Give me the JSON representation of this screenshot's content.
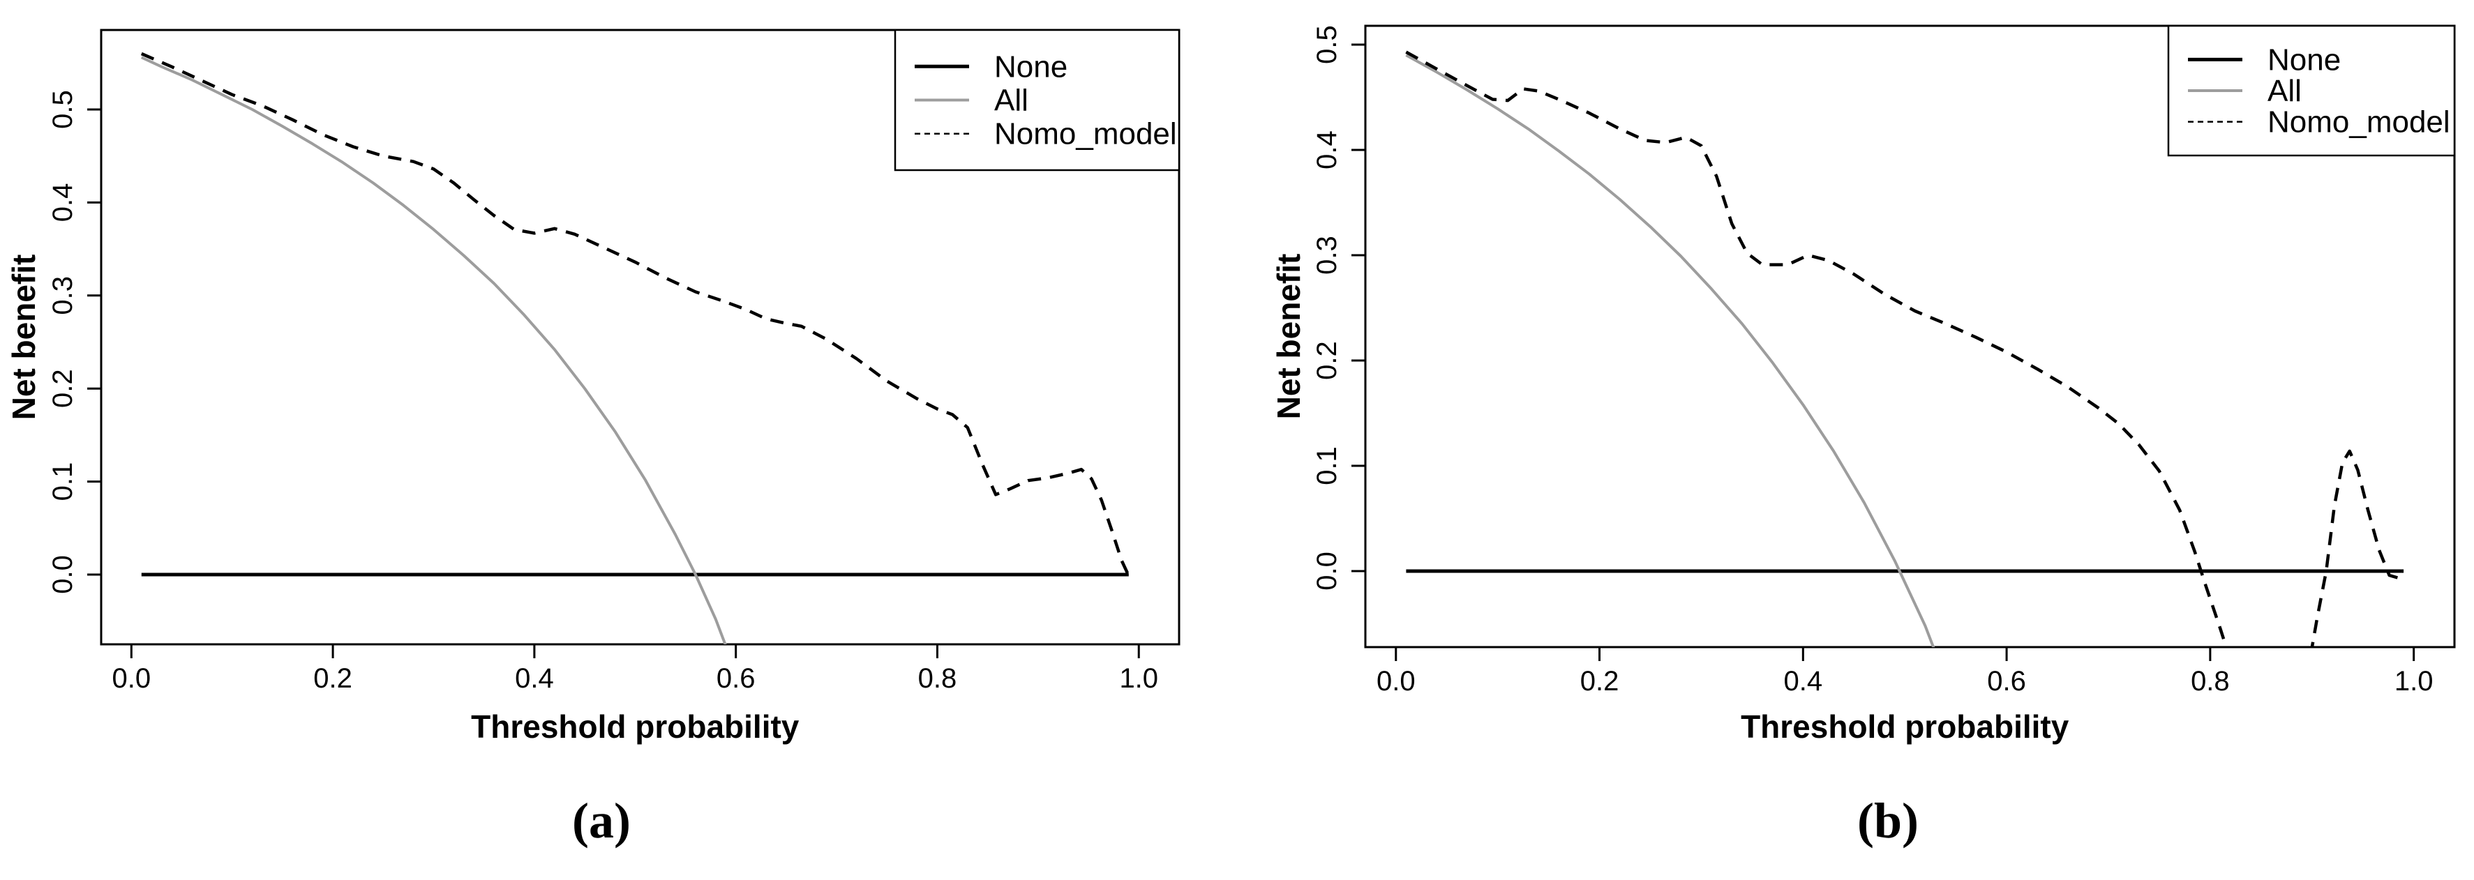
{
  "figure": {
    "background": "#ffffff",
    "text_color": "#000000",
    "all_line_color": "#9d9d9d"
  },
  "chart_data": [
    {
      "id": "a",
      "type": "line",
      "caption": "(a)",
      "xlabel": "Threshold probability",
      "ylabel": "Net benefit",
      "xlim": [
        -0.03,
        1.04
      ],
      "ylim": [
        -0.075,
        0.5855
      ],
      "grid": false,
      "legend_position": "top-right",
      "xticks": {
        "values": [
          0,
          0.2,
          0.4,
          0.6,
          0.8,
          1.0
        ],
        "labels": [
          "0.0",
          "0.2",
          "0.4",
          "0.6",
          "0.8",
          "1.0"
        ]
      },
      "yticks": {
        "values": [
          0,
          0.1,
          0.2,
          0.3,
          0.4,
          0.5
        ],
        "labels": [
          "0.0",
          "0.1",
          "0.2",
          "0.3",
          "0.4",
          "0.5"
        ]
      },
      "legend": [
        "None",
        "All",
        "Nomo_model"
      ],
      "series": [
        {
          "name": "None",
          "color": "#000000",
          "style": "solid",
          "width": 5,
          "points": [
            [
              0.01,
              0
            ],
            [
              0.99,
              0
            ]
          ]
        },
        {
          "name": "All",
          "color": "#9d9d9d",
          "style": "solid",
          "width": 4,
          "points": [
            [
              0.01,
              0.556
            ],
            [
              0.03,
              0.546
            ],
            [
              0.06,
              0.532
            ],
            [
              0.09,
              0.516
            ],
            [
              0.12,
              0.5
            ],
            [
              0.15,
              0.482
            ],
            [
              0.18,
              0.463
            ],
            [
              0.21,
              0.443
            ],
            [
              0.24,
              0.421
            ],
            [
              0.27,
              0.397
            ],
            [
              0.3,
              0.371
            ],
            [
              0.33,
              0.343
            ],
            [
              0.36,
              0.313
            ],
            [
              0.39,
              0.279
            ],
            [
              0.42,
              0.242
            ],
            [
              0.45,
              0.2
            ],
            [
              0.48,
              0.154
            ],
            [
              0.51,
              0.102
            ],
            [
              0.54,
              0.043
            ],
            [
              0.56,
              0.0
            ],
            [
              0.58,
              -0.048
            ],
            [
              0.6,
              -0.105
            ]
          ]
        },
        {
          "name": "Nomo_model",
          "color": "#000000",
          "style": "dashed",
          "width": 4.5,
          "points": [
            [
              0.01,
              0.56
            ],
            [
              0.04,
              0.546
            ],
            [
              0.07,
              0.531
            ],
            [
              0.1,
              0.516
            ],
            [
              0.13,
              0.504
            ],
            [
              0.16,
              0.489
            ],
            [
              0.19,
              0.473
            ],
            [
              0.22,
              0.46
            ],
            [
              0.25,
              0.45
            ],
            [
              0.28,
              0.444
            ],
            [
              0.3,
              0.436
            ],
            [
              0.32,
              0.421
            ],
            [
              0.34,
              0.403
            ],
            [
              0.36,
              0.386
            ],
            [
              0.38,
              0.371
            ],
            [
              0.4,
              0.367
            ],
            [
              0.42,
              0.372
            ],
            [
              0.44,
              0.366
            ],
            [
              0.47,
              0.351
            ],
            [
              0.5,
              0.336
            ],
            [
              0.53,
              0.319
            ],
            [
              0.56,
              0.304
            ],
            [
              0.585,
              0.295
            ],
            [
              0.61,
              0.285
            ],
            [
              0.63,
              0.275
            ],
            [
              0.65,
              0.27
            ],
            [
              0.665,
              0.267
            ],
            [
              0.69,
              0.253
            ],
            [
              0.72,
              0.232
            ],
            [
              0.75,
              0.208
            ],
            [
              0.78,
              0.189
            ],
            [
              0.8,
              0.178
            ],
            [
              0.815,
              0.172
            ],
            [
              0.83,
              0.158
            ],
            [
              0.845,
              0.118
            ],
            [
              0.858,
              0.086
            ],
            [
              0.872,
              0.092
            ],
            [
              0.89,
              0.101
            ],
            [
              0.91,
              0.104
            ],
            [
              0.93,
              0.109
            ],
            [
              0.943,
              0.113
            ],
            [
              0.953,
              0.103
            ],
            [
              0.963,
              0.08
            ],
            [
              0.973,
              0.048
            ],
            [
              0.983,
              0.015
            ],
            [
              0.992,
              -0.006
            ]
          ]
        }
      ]
    },
    {
      "id": "b",
      "type": "line",
      "caption": "(b)",
      "xlabel": "Threshold probability",
      "ylabel": "Net benefit",
      "xlim": [
        -0.03,
        1.04
      ],
      "ylim": [
        -0.0722,
        0.5179
      ],
      "grid": false,
      "legend_position": "top-right",
      "xticks": {
        "values": [
          0,
          0.2,
          0.4,
          0.6,
          0.8,
          1.0
        ],
        "labels": [
          "0.0",
          "0.2",
          "0.4",
          "0.6",
          "0.8",
          "1.0"
        ]
      },
      "yticks": {
        "values": [
          0,
          0.1,
          0.2,
          0.3,
          0.4,
          0.5
        ],
        "labels": [
          "0.0",
          "0.1",
          "0.2",
          "0.3",
          "0.4",
          "0.5"
        ]
      },
      "legend": [
        "None",
        "All",
        "Nomo_model"
      ],
      "series": [
        {
          "name": "None",
          "color": "#000000",
          "style": "solid",
          "width": 5,
          "points": [
            [
              0.01,
              0
            ],
            [
              0.99,
              0
            ]
          ]
        },
        {
          "name": "All",
          "color": "#9d9d9d",
          "style": "solid",
          "width": 4,
          "points": [
            [
              0.01,
              0.49
            ],
            [
              0.04,
              0.474
            ],
            [
              0.07,
              0.457
            ],
            [
              0.1,
              0.439
            ],
            [
              0.13,
              0.42
            ],
            [
              0.16,
              0.399
            ],
            [
              0.19,
              0.377
            ],
            [
              0.22,
              0.353
            ],
            [
              0.25,
              0.327
            ],
            [
              0.28,
              0.299
            ],
            [
              0.31,
              0.268
            ],
            [
              0.34,
              0.235
            ],
            [
              0.37,
              0.198
            ],
            [
              0.4,
              0.158
            ],
            [
              0.43,
              0.114
            ],
            [
              0.46,
              0.065
            ],
            [
              0.49,
              0.01
            ],
            [
              0.52,
              -0.052
            ],
            [
              0.545,
              -0.115
            ]
          ]
        },
        {
          "name": "Nomo_model",
          "color": "#000000",
          "style": "dashed",
          "width": 4.5,
          "points": [
            [
              0.01,
              0.493
            ],
            [
              0.04,
              0.477
            ],
            [
              0.07,
              0.461
            ],
            [
              0.095,
              0.448
            ],
            [
              0.11,
              0.447
            ],
            [
              0.125,
              0.458
            ],
            [
              0.14,
              0.456
            ],
            [
              0.16,
              0.448
            ],
            [
              0.19,
              0.435
            ],
            [
              0.22,
              0.42
            ],
            [
              0.245,
              0.409
            ],
            [
              0.265,
              0.407
            ],
            [
              0.285,
              0.412
            ],
            [
              0.3,
              0.404
            ],
            [
              0.315,
              0.375
            ],
            [
              0.33,
              0.33
            ],
            [
              0.345,
              0.302
            ],
            [
              0.36,
              0.291
            ],
            [
              0.385,
              0.291
            ],
            [
              0.405,
              0.3
            ],
            [
              0.425,
              0.295
            ],
            [
              0.45,
              0.282
            ],
            [
              0.48,
              0.263
            ],
            [
              0.51,
              0.247
            ],
            [
              0.54,
              0.235
            ],
            [
              0.57,
              0.222
            ],
            [
              0.6,
              0.208
            ],
            [
              0.63,
              0.192
            ],
            [
              0.66,
              0.175
            ],
            [
              0.69,
              0.155
            ],
            [
              0.71,
              0.14
            ],
            [
              0.73,
              0.12
            ],
            [
              0.75,
              0.095
            ],
            [
              0.77,
              0.058
            ],
            [
              0.785,
              0.018
            ],
            [
              0.795,
              -0.012
            ],
            [
              0.81,
              -0.055
            ],
            [
              0.82,
              -0.085
            ],
            [
              0.84,
              -0.18
            ],
            [
              0.87,
              -0.19
            ],
            [
              0.895,
              -0.1
            ],
            [
              0.905,
              -0.045
            ],
            [
              0.914,
              0.0
            ],
            [
              0.922,
              0.062
            ],
            [
              0.93,
              0.103
            ],
            [
              0.937,
              0.114
            ],
            [
              0.945,
              0.096
            ],
            [
              0.955,
              0.058
            ],
            [
              0.966,
              0.02
            ],
            [
              0.976,
              -0.004
            ],
            [
              0.99,
              -0.008
            ]
          ]
        }
      ]
    }
  ]
}
